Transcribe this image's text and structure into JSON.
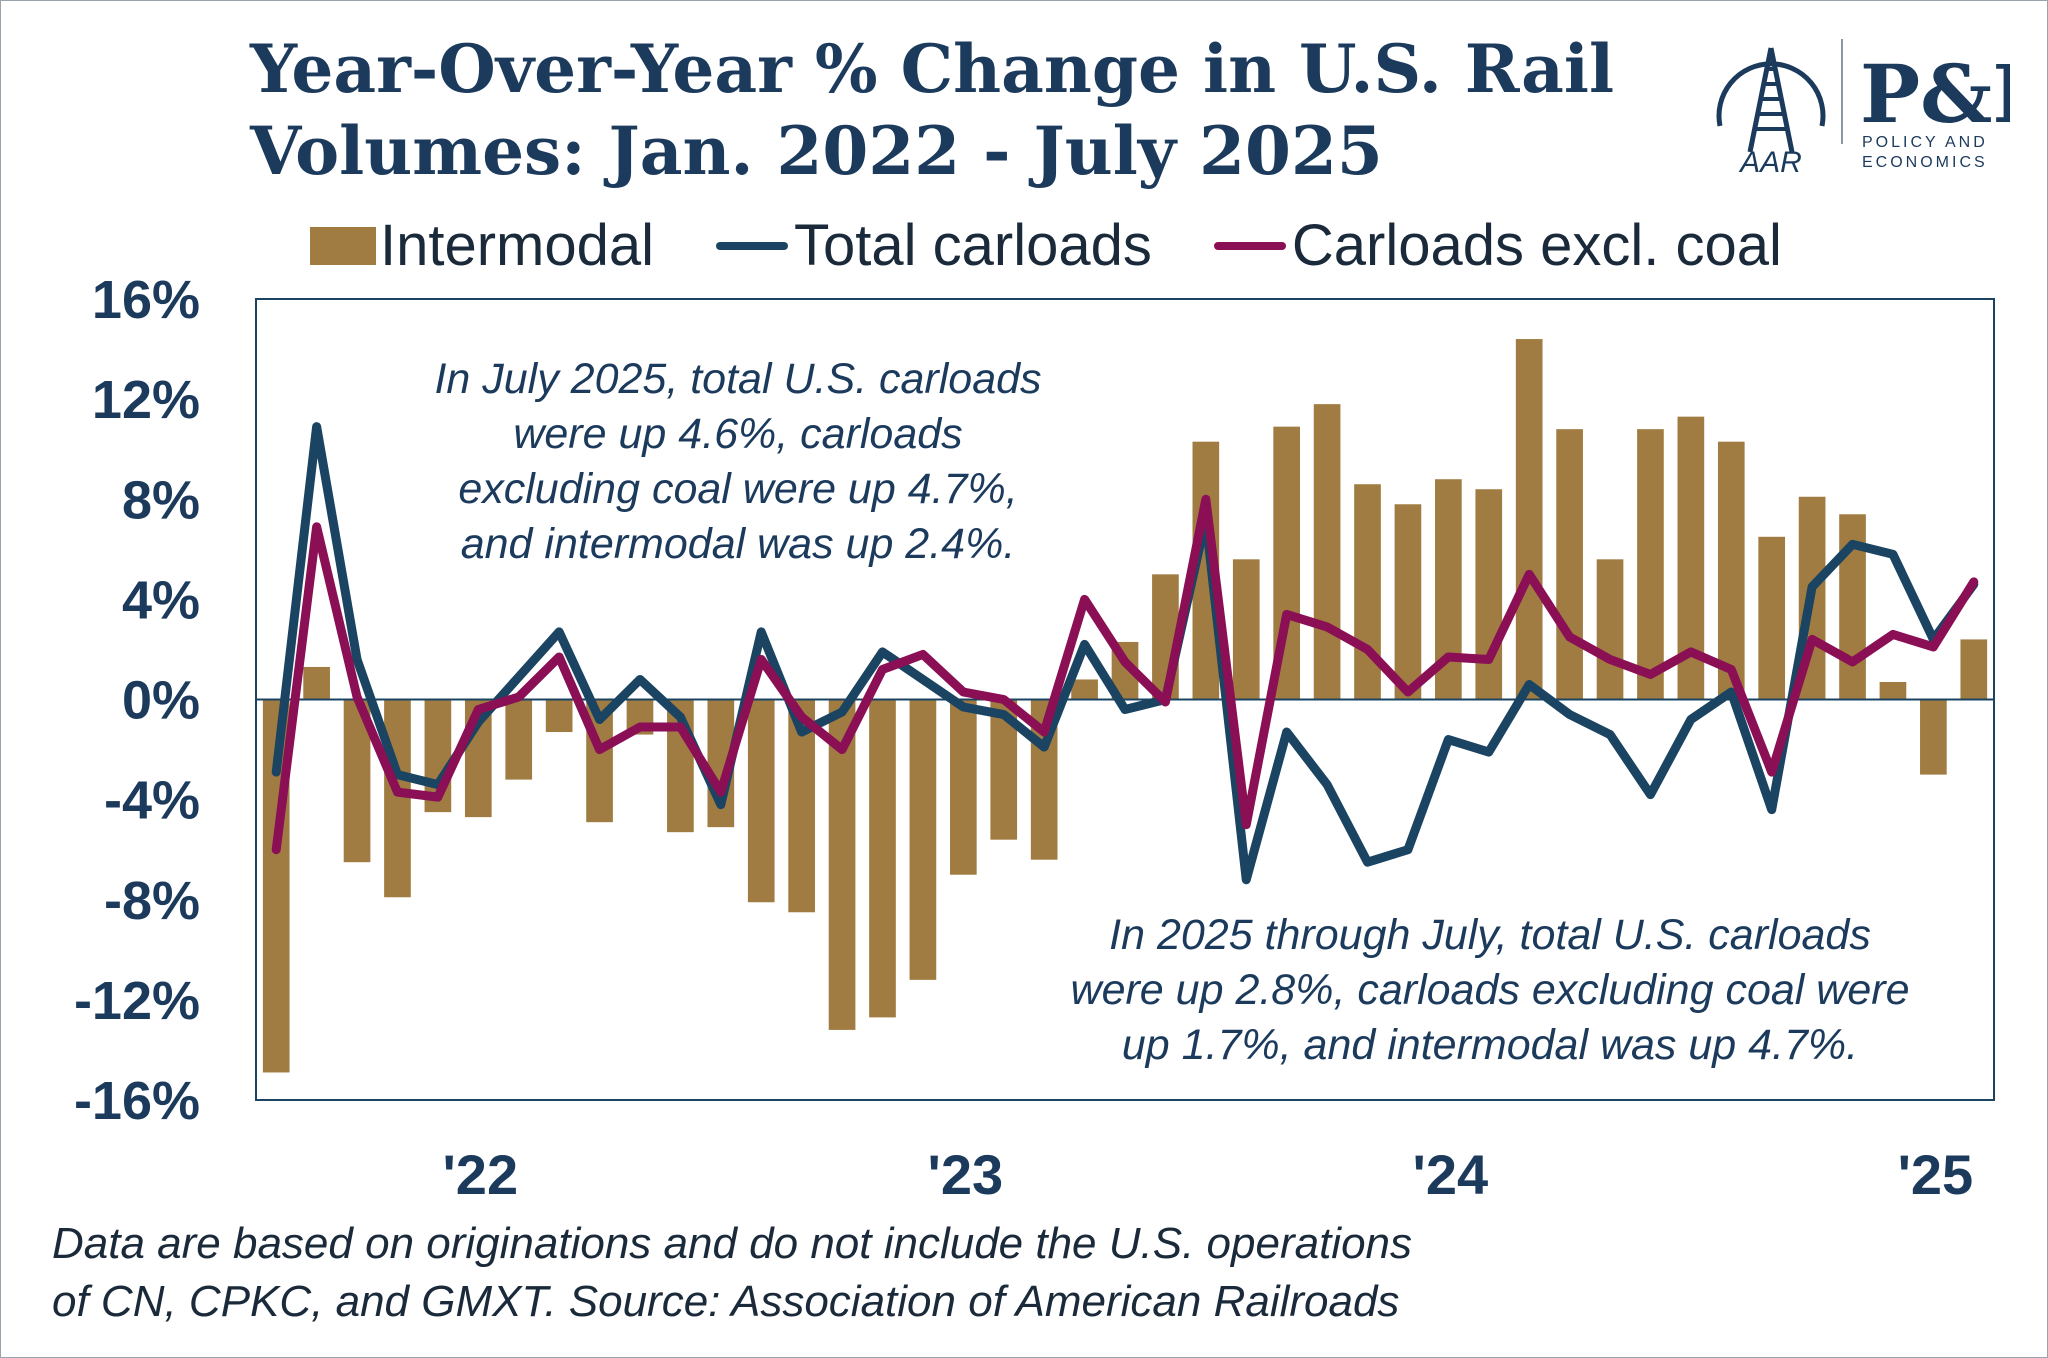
{
  "title_lines": [
    "Year-Over-Year % Change in U.S. Rail",
    "Volumes: Jan. 2022 - July 2025"
  ],
  "logo": {
    "aar_text": "AAR",
    "pe_text": "P&E",
    "pe_sub_1": "POLICY AND",
    "pe_sub_2": "ECONOMICS"
  },
  "colors": {
    "intermodal": "#a07c42",
    "total_carloads": "#1a4461",
    "carloads_excl_coal": "#8b0f55",
    "title": "#1b3a5c",
    "axis": "#1a4461"
  },
  "chart_data": {
    "type": "bar+line",
    "title": "Year-Over-Year % Change in U.S. Rail Volumes: Jan. 2022 - July 2025",
    "xlabel": "",
    "ylabel": "",
    "ylim": [
      -16,
      16
    ],
    "yticks": [
      "16%",
      "12%",
      "8%",
      "4%",
      "0%",
      "-4%",
      "-8%",
      "-12%",
      "-16%"
    ],
    "ytick_values": [
      16,
      12,
      8,
      4,
      0,
      -4,
      -8,
      -12,
      -16
    ],
    "xtick_labels": [
      "'22",
      "'23",
      "'24",
      "'25"
    ],
    "legend_position": "top",
    "grid": false,
    "x": [
      "2022-01",
      "2022-02",
      "2022-03",
      "2022-04",
      "2022-05",
      "2022-06",
      "2022-07",
      "2022-08",
      "2022-09",
      "2022-10",
      "2022-11",
      "2022-12",
      "2023-01",
      "2023-02",
      "2023-03",
      "2023-04",
      "2023-05",
      "2023-06",
      "2023-07",
      "2023-08",
      "2023-09",
      "2023-10",
      "2023-11",
      "2023-12",
      "2024-01",
      "2024-02",
      "2024-03",
      "2024-04",
      "2024-05",
      "2024-06",
      "2024-07",
      "2024-08",
      "2024-09",
      "2024-10",
      "2024-11",
      "2024-12",
      "2025-01",
      "2025-02",
      "2025-03",
      "2025-04",
      "2025-05",
      "2025-06",
      "2025-07"
    ],
    "series": [
      {
        "name": "Intermodal",
        "type": "bar",
        "values": [
          -14.9,
          1.3,
          -6.5,
          -7.9,
          -4.5,
          -4.7,
          -3.2,
          -1.3,
          -4.9,
          -1.4,
          -5.3,
          -5.1,
          -8.1,
          -8.5,
          -13.2,
          -12.7,
          -11.2,
          -7.0,
          -5.6,
          -6.4,
          0.8,
          2.3,
          5.0,
          10.3,
          5.6,
          10.9,
          11.8,
          8.6,
          7.8,
          8.8,
          8.4,
          14.4,
          10.8,
          5.6,
          10.8,
          11.3,
          10.3,
          6.5,
          8.1,
          7.4,
          0.7,
          -3.0,
          2.4
        ]
      },
      {
        "name": "Total carloads",
        "type": "line",
        "values": [
          -2.9,
          10.9,
          1.6,
          -3.0,
          -3.4,
          -0.9,
          0.9,
          2.7,
          -0.8,
          0.8,
          -0.7,
          -4.2,
          2.7,
          -1.3,
          -0.5,
          1.9,
          0.8,
          -0.3,
          -0.6,
          -1.9,
          2.2,
          -0.4,
          0.0,
          7.2,
          -7.2,
          -1.3,
          -3.4,
          -6.5,
          -6.0,
          -1.6,
          -2.1,
          0.6,
          -0.6,
          -1.4,
          -3.8,
          -0.8,
          0.3,
          -4.4,
          4.5,
          6.2,
          5.8,
          2.4,
          4.6
        ]
      },
      {
        "name": "Carloads excl. coal",
        "type": "line",
        "values": [
          -6.0,
          6.9,
          0.1,
          -3.7,
          -3.9,
          -0.4,
          0.1,
          1.7,
          -2.0,
          -1.1,
          -1.1,
          -3.7,
          1.6,
          -0.7,
          -2.0,
          1.2,
          1.8,
          0.3,
          0.0,
          -1.3,
          4.0,
          1.5,
          -0.1,
          8.0,
          -5.0,
          3.4,
          2.9,
          2.0,
          0.3,
          1.7,
          1.6,
          5.0,
          2.5,
          1.6,
          1.0,
          1.9,
          1.2,
          -2.9,
          2.4,
          1.5,
          2.6,
          2.1,
          4.7
        ]
      }
    ],
    "annotations": [
      [
        "In July 2025, total U.S. carloads",
        "were up 4.6%, carloads",
        "excluding coal were up 4.7%,",
        "and intermodal was up 2.4%."
      ],
      [
        "In 2025 through July, total U.S. carloads",
        "were up 2.8%, carloads excluding coal were",
        "up 1.7%, and intermodal was up 4.7%."
      ]
    ]
  },
  "footnote_lines": [
    "Data are based on originations and do not include the U.S. operations",
    "of CN, CPKC, and GMXT. Source: Association of American Railroads"
  ]
}
